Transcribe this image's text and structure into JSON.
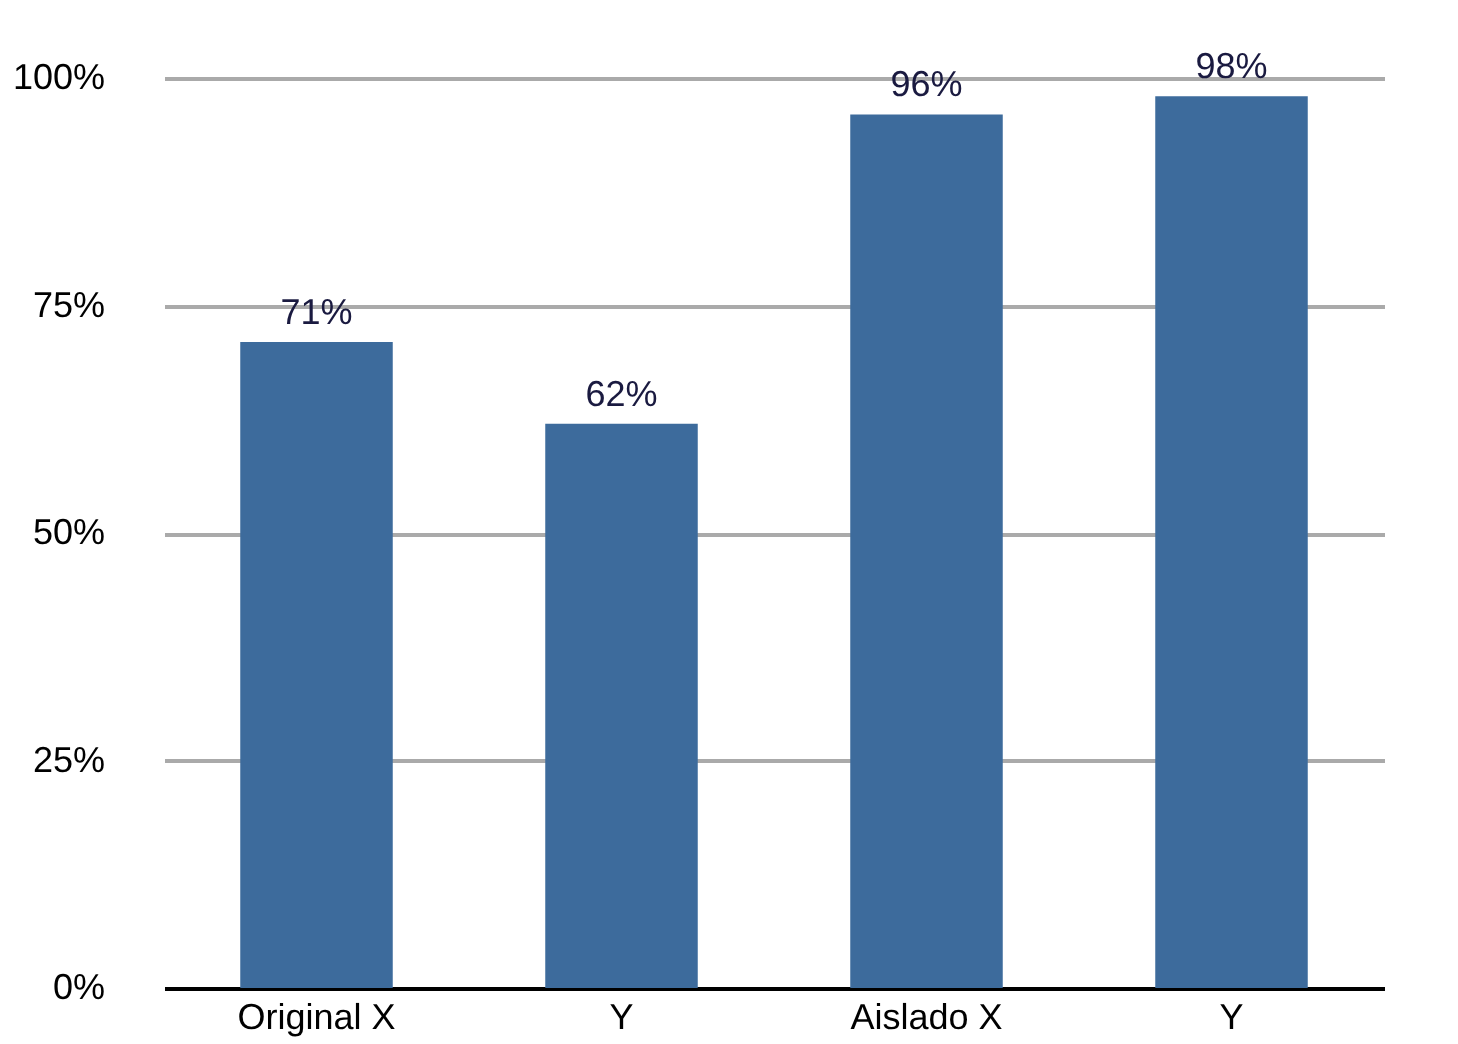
{
  "chart_data": {
    "type": "bar",
    "categories": [
      "Original X",
      "Y",
      "Aislado X",
      "Y"
    ],
    "values": [
      71,
      62,
      96,
      98
    ],
    "value_labels": [
      "71%",
      "62%",
      "96%",
      "98%"
    ],
    "color": "#3d6b9c",
    "ylim": [
      0,
      100
    ],
    "yticks": [
      {
        "value": 0,
        "label": "0%"
      },
      {
        "value": 25,
        "label": "25%"
      },
      {
        "value": 50,
        "label": "50%"
      },
      {
        "value": 75,
        "label": "75%"
      },
      {
        "value": 100,
        "label": "100%"
      }
    ],
    "grid": "y"
  }
}
